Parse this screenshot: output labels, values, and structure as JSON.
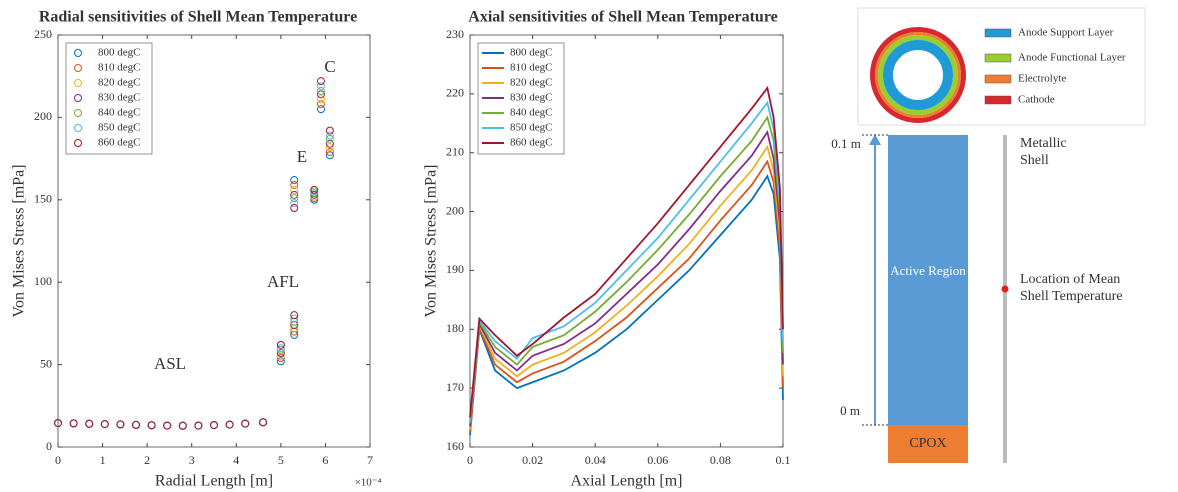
{
  "chart_data": [
    {
      "type": "scatter",
      "title": "Radial sensitivities of Shell Mean Temperature",
      "x_label": "Radial Length [m]",
      "y_label": "Von Mises Stress [mPa]",
      "x_multiplier": "×10⁻⁴",
      "xlim": [
        0,
        7
      ],
      "xticks": [
        0,
        1,
        2,
        3,
        4,
        5,
        6,
        7
      ],
      "ylim": [
        0,
        250
      ],
      "yticks": [
        0,
        50,
        100,
        150,
        200,
        250
      ],
      "legend": "upper left",
      "grid": false,
      "annotations": [
        "ASL",
        "AFL",
        "E",
        "C"
      ],
      "x": [
        0,
        0.35,
        0.7,
        1.05,
        1.4,
        1.75,
        2.1,
        2.45,
        2.8,
        3.15,
        3.5,
        3.85,
        4.2,
        4.6,
        5.0,
        5.3,
        5.3,
        5.75,
        5.9,
        6.1
      ],
      "series": [
        {
          "name": "800 degC",
          "color": "#0072bd",
          "values": [
            14.5,
            14.3,
            14.1,
            13.9,
            13.7,
            13.4,
            13.2,
            13.0,
            12.9,
            13.0,
            13.3,
            13.6,
            14.2,
            15.0,
            52,
            68,
            162,
            150,
            205,
            177
          ]
        },
        {
          "name": "810 degC",
          "color": "#d95319",
          "values": [
            14.5,
            14.3,
            14.1,
            13.9,
            13.7,
            13.4,
            13.2,
            13.0,
            12.9,
            13.0,
            13.3,
            13.6,
            14.2,
            15.0,
            54,
            70,
            159,
            151,
            208,
            179
          ]
        },
        {
          "name": "820 degC",
          "color": "#edb120",
          "values": [
            14.5,
            14.3,
            14.1,
            13.9,
            13.7,
            13.4,
            13.2,
            13.0,
            12.9,
            13.0,
            13.3,
            13.6,
            14.2,
            15.0,
            55,
            72,
            156,
            152,
            211,
            182
          ]
        },
        {
          "name": "830 degC",
          "color": "#7e2f8e",
          "values": [
            14.5,
            14.3,
            14.1,
            13.9,
            13.7,
            13.4,
            13.2,
            13.0,
            12.9,
            13.0,
            13.3,
            13.6,
            14.2,
            15.0,
            57,
            74,
            153,
            153,
            214,
            184
          ]
        },
        {
          "name": "840 degC",
          "color": "#77ac30",
          "values": [
            14.5,
            14.3,
            14.1,
            13.9,
            13.7,
            13.4,
            13.2,
            13.0,
            12.9,
            13.0,
            13.3,
            13.6,
            14.2,
            15.0,
            59,
            76,
            151,
            154,
            216,
            187
          ]
        },
        {
          "name": "850 degC",
          "color": "#4dbeee",
          "values": [
            14.5,
            14.3,
            14.1,
            13.9,
            13.7,
            13.4,
            13.2,
            13.0,
            12.9,
            13.0,
            13.3,
            13.6,
            14.2,
            15.0,
            60,
            78,
            148,
            155,
            219,
            189
          ]
        },
        {
          "name": "860 degC",
          "color": "#a2142f",
          "values": [
            14.5,
            14.3,
            14.1,
            13.9,
            13.7,
            13.4,
            13.2,
            13.0,
            12.9,
            13.0,
            13.3,
            13.6,
            14.2,
            15.0,
            62,
            80,
            145,
            156,
            222,
            192
          ]
        }
      ]
    },
    {
      "type": "line",
      "title": "Axial sensitivities of Shell Mean Temperature",
      "x_label": "Axial Length [m]",
      "y_label": "Von Mises Stress [mPa]",
      "xlim": [
        0,
        0.1
      ],
      "xticks": [
        0,
        0.02,
        0.04,
        0.06,
        0.08,
        0.1
      ],
      "ylim": [
        160,
        230
      ],
      "yticks": [
        160,
        170,
        180,
        190,
        200,
        210,
        220,
        230
      ],
      "legend": "upper left",
      "grid": false,
      "x": [
        0,
        0.003,
        0.008,
        0.015,
        0.02,
        0.03,
        0.04,
        0.05,
        0.06,
        0.07,
        0.08,
        0.09,
        0.095,
        0.097,
        0.099,
        0.1
      ],
      "series": [
        {
          "name": "800 degC",
          "color": "#0072bd",
          "values": [
            162,
            180,
            173,
            170,
            171,
            173,
            176,
            180,
            185,
            190,
            196,
            202,
            206,
            203,
            192,
            168
          ]
        },
        {
          "name": "810 degC",
          "color": "#d95319",
          "values": [
            162.5,
            180.3,
            174,
            171,
            172.5,
            174.5,
            178,
            182,
            187,
            192,
            198.5,
            204.5,
            208.5,
            205,
            194,
            170
          ]
        },
        {
          "name": "820 degC",
          "color": "#edb120",
          "values": [
            163,
            180.6,
            175,
            172,
            174,
            176,
            179.5,
            184,
            189,
            194.5,
            201,
            207,
            211,
            207,
            196,
            172
          ]
        },
        {
          "name": "830 degC",
          "color": "#7e2f8e",
          "values": [
            163.5,
            180.9,
            176,
            173,
            175.5,
            177.5,
            181,
            186,
            191,
            197,
            203.5,
            209.5,
            213.5,
            209,
            198,
            174
          ]
        },
        {
          "name": "840 degC",
          "color": "#77ac30",
          "values": [
            164,
            181.2,
            177,
            174,
            177,
            179,
            183,
            188,
            193.5,
            199.5,
            206,
            212,
            216,
            212,
            200,
            176
          ]
        },
        {
          "name": "850 degC",
          "color": "#4dbeee",
          "values": [
            164.5,
            181.5,
            178,
            175,
            178.5,
            180.5,
            184.5,
            190,
            195.5,
            202,
            208.5,
            215,
            218.5,
            214,
            202,
            178
          ]
        },
        {
          "name": "860 degC",
          "color": "#a2142f",
          "values": [
            165,
            181.8,
            179,
            175.5,
            177.5,
            182,
            186,
            192,
            198,
            204.5,
            211,
            217.5,
            221,
            216,
            204,
            180
          ]
        }
      ]
    }
  ],
  "diagram": {
    "layers": [
      {
        "label": "Anode Support Layer",
        "color": "#1e9ad6"
      },
      {
        "label": "Anode Functional Layer",
        "color": "#9acd32"
      },
      {
        "label": "Electrolyte",
        "color": "#ed7d31"
      },
      {
        "label": "Cathode",
        "color": "#d7282f"
      }
    ],
    "top_label": "0.1 m",
    "bottom_label": "0 m",
    "active_region": "Active Region",
    "cpox": "CPOX",
    "shell": "Metallic Shell",
    "mean_temp": "Location of Mean Shell Temperature"
  }
}
